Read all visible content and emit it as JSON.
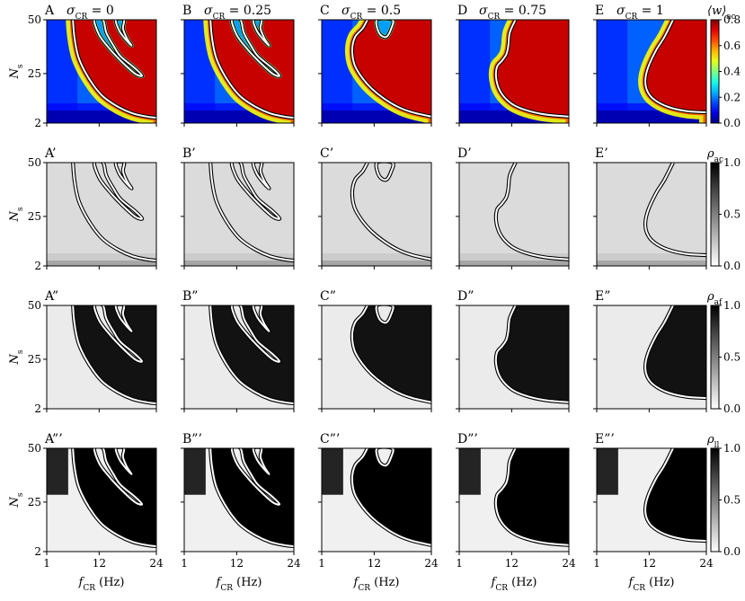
{
  "chart_data": {
    "type": "heatmap",
    "layout": "4 rows x 5 columns of small-multiple heatmaps, one colorbar per row on the right",
    "columns": [
      {
        "letter": "A",
        "sigma_label": "σ",
        "sigma_sub": "CR",
        "sigma_value": " = 0",
        "sigma": 0
      },
      {
        "letter": "B",
        "sigma_label": "σ",
        "sigma_sub": "CR",
        "sigma_value": " = 0.25",
        "sigma": 0.25
      },
      {
        "letter": "C",
        "sigma_label": "σ",
        "sigma_sub": "CR",
        "sigma_value": " = 0.5",
        "sigma": 0.5
      },
      {
        "letter": "D",
        "sigma_label": "σ",
        "sigma_sub": "CR",
        "sigma_value": " = 0.75",
        "sigma": 0.75
      },
      {
        "letter": "E",
        "sigma_label": "σ",
        "sigma_sub": "CR",
        "sigma_value": " = 1",
        "sigma": 1
      }
    ],
    "rows": [
      {
        "suffix": "",
        "quantity": "mean synaptic weight",
        "colorbar_label": "⟨w⟩",
        "colorbar_sub": "ac",
        "colormap": "jet",
        "clim": [
          0.0,
          0.8
        ],
        "colorbar_ticks": [
          "0.8",
          "0.6",
          "0.4",
          "0.2",
          "0.0"
        ]
      },
      {
        "suffix": "’",
        "quantity": "rho ac",
        "colorbar_label": "ρ",
        "colorbar_sub": "ac",
        "colormap": "gray_r",
        "clim": [
          0.0,
          1.0
        ],
        "colorbar_ticks": [
          "1.0",
          "0.5",
          "0.0"
        ]
      },
      {
        "suffix": "”",
        "quantity": "rho af",
        "colorbar_label": "ρ",
        "colorbar_sub": "af",
        "colormap": "gray_r",
        "clim": [
          0.0,
          1.0
        ],
        "colorbar_ticks": [
          "1.0",
          "0.5",
          "0.0"
        ]
      },
      {
        "suffix": "”’",
        "quantity": "rho ll",
        "colorbar_label": "ρ",
        "colorbar_sub": "ll",
        "colormap": "gray_r",
        "clim": [
          0.0,
          1.0
        ],
        "colorbar_ticks": [
          "1.0",
          "0.5",
          "0.0"
        ]
      }
    ],
    "x_axis": {
      "label_main": "f",
      "label_sub": "CR",
      "label_unit": " (Hz)",
      "range": [
        1,
        24
      ],
      "ticks": [
        1,
        12,
        24
      ],
      "tick_labels": [
        "1",
        "12",
        "24"
      ]
    },
    "y_axis": {
      "label_main": "N",
      "label_sub": "s",
      "range": [
        2,
        50
      ],
      "ticks": [
        2,
        25,
        50
      ],
      "tick_labels": [
        "2",
        "25",
        "50"
      ]
    },
    "contour_color": "#ffffff",
    "grid": false
  }
}
